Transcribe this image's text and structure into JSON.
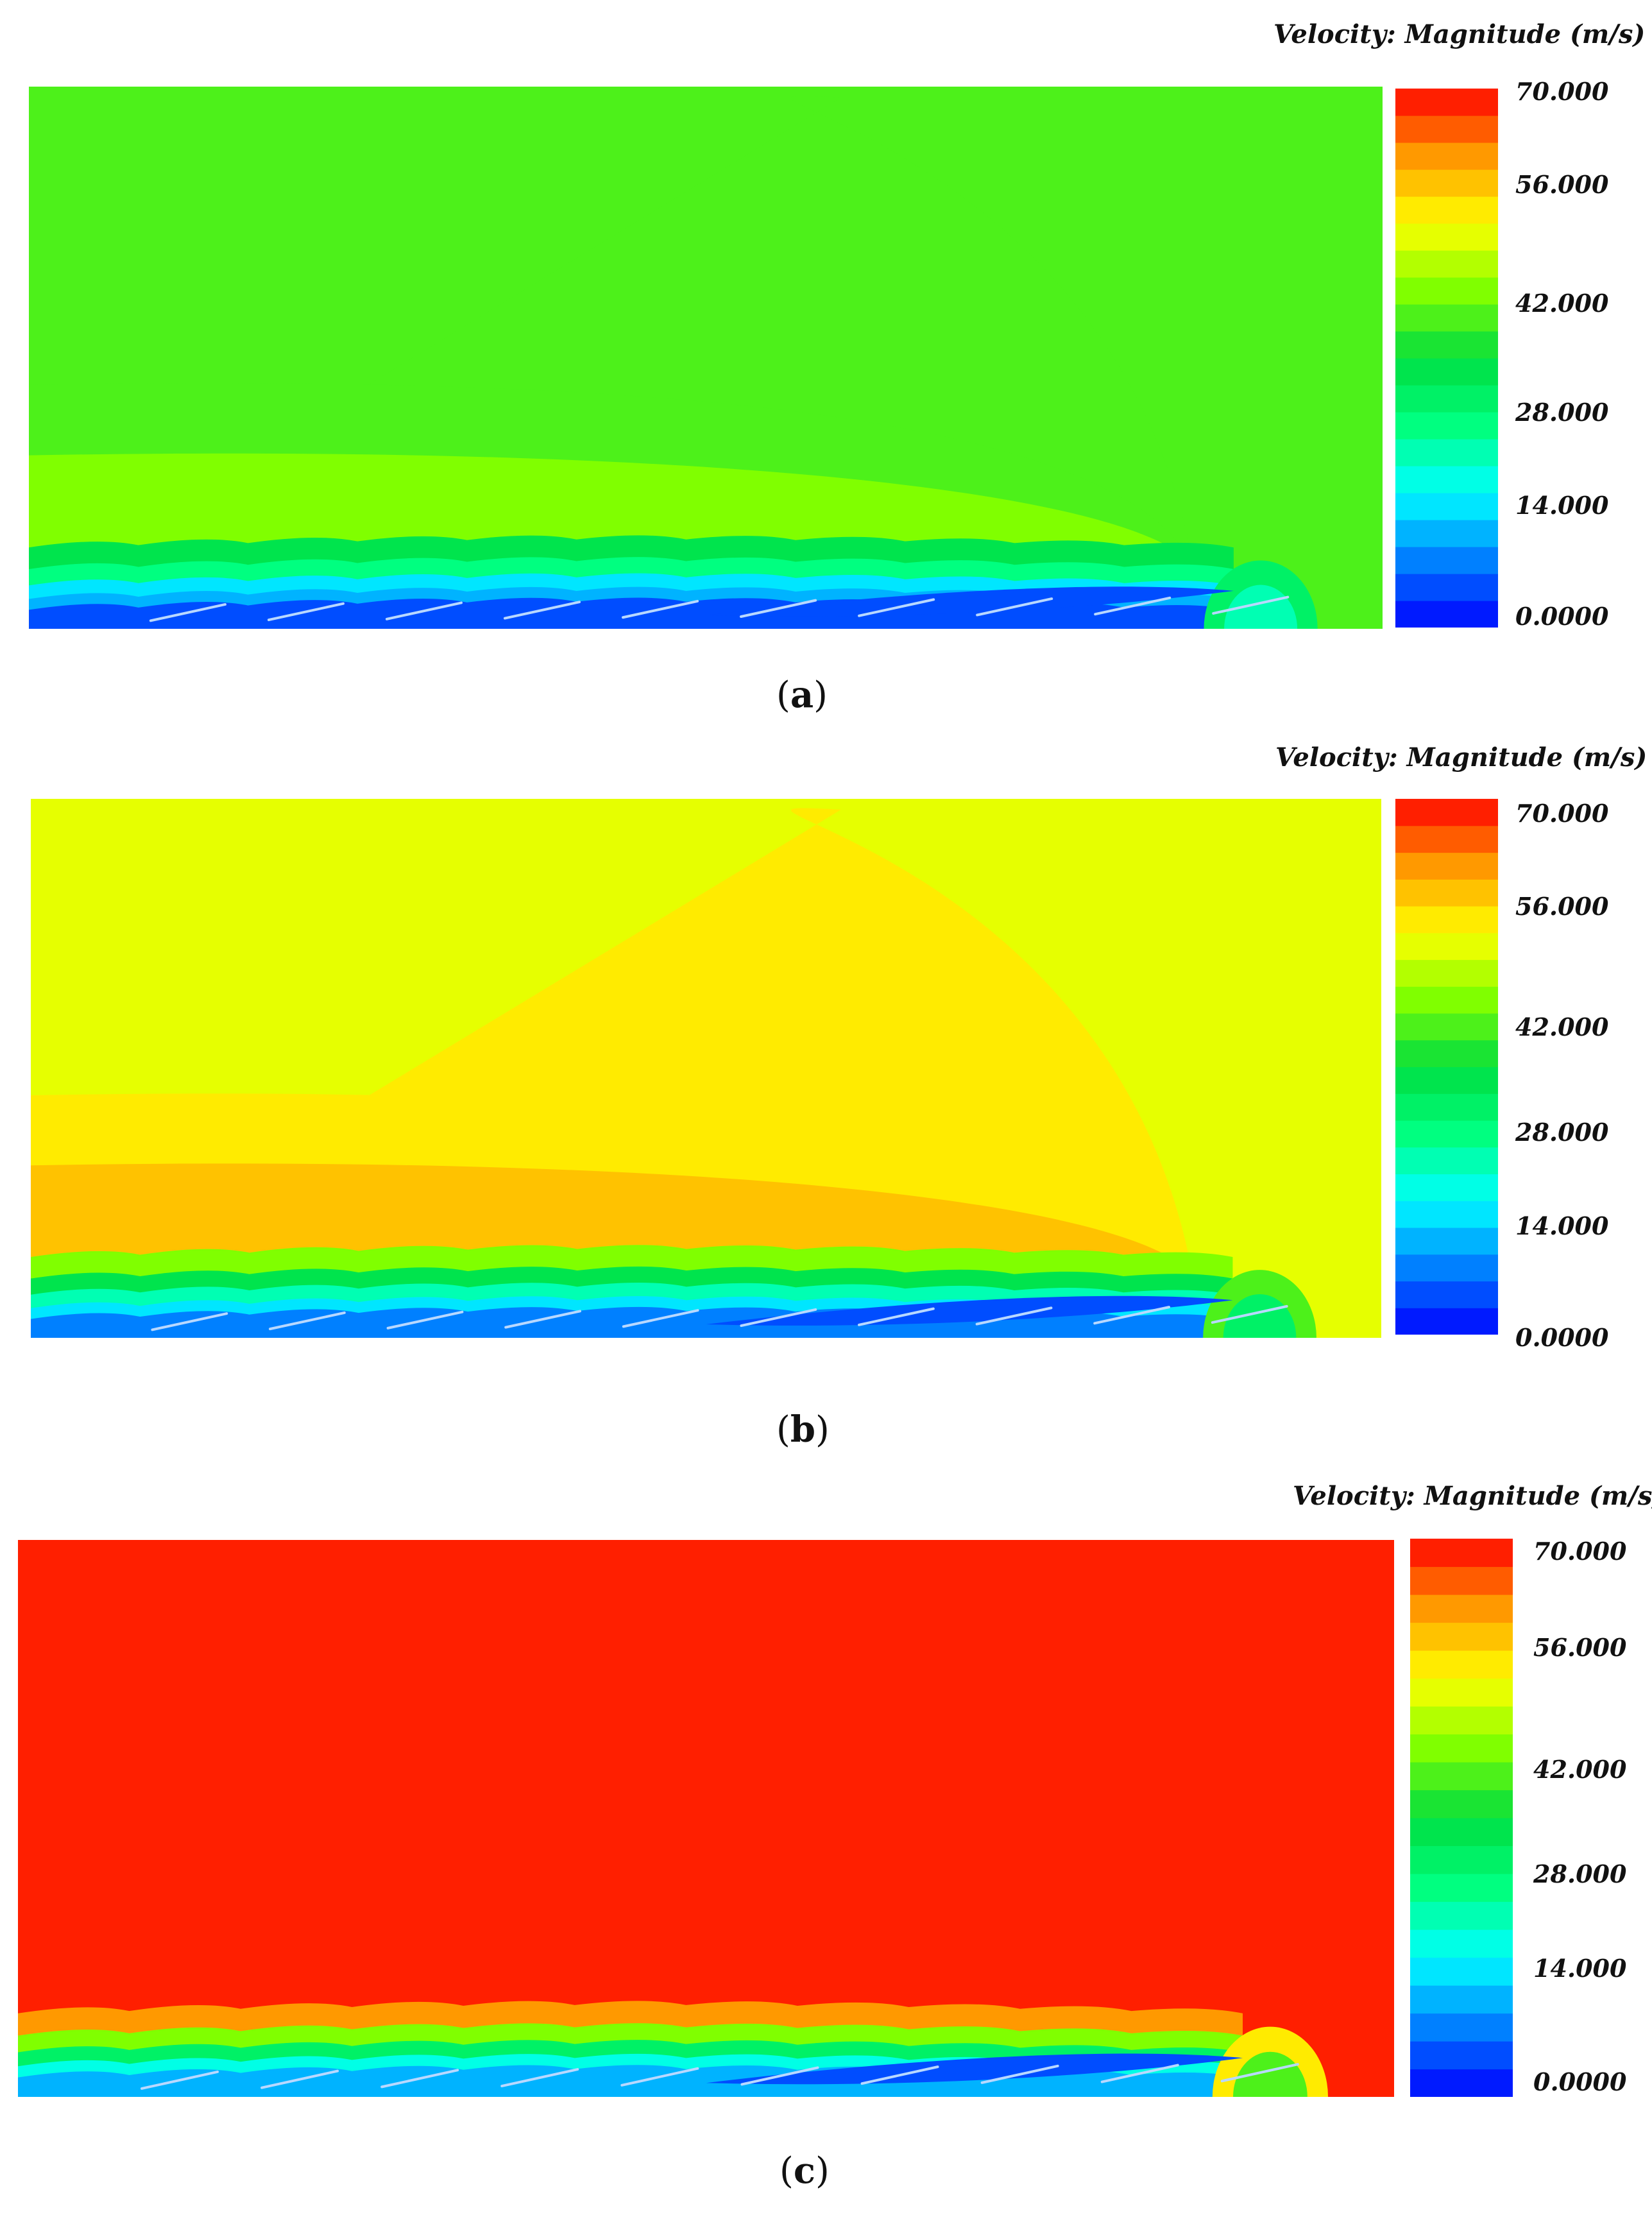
{
  "chart_data": [
    {
      "type": "heatmap",
      "panel_label": "a",
      "legend_title": "Velocity: Magnitude (m/s)",
      "colorbar_ticks": [
        "70.000",
        "56.000",
        "42.000",
        "28.000",
        "14.000",
        "0.0000"
      ],
      "colorbar_range": [
        0,
        70
      ],
      "colorbar_levels": 20,
      "freestream_velocity": 40
    },
    {
      "type": "heatmap",
      "panel_label": "b",
      "legend_title": "Velocity: Magnitude (m/s)",
      "colorbar_ticks": [
        "70.000",
        "56.000",
        "42.000",
        "28.000",
        "14.000",
        "0.0000"
      ],
      "colorbar_range": [
        0,
        70
      ],
      "colorbar_levels": 20,
      "freestream_velocity": 52
    },
    {
      "type": "heatmap",
      "panel_label": "c",
      "legend_title": "Velocity: Magnitude (m/s)",
      "colorbar_ticks": [
        "70.000",
        "56.000",
        "42.000",
        "28.000",
        "14.000",
        "0.0000"
      ],
      "colorbar_range": [
        0,
        70
      ],
      "colorbar_levels": 20,
      "freestream_velocity": 70
    }
  ],
  "colormap": [
    "#0000ff",
    "#0080ff",
    "#00ffff",
    "#00ff80",
    "#00dd40",
    "#80ff00",
    "#ffff00",
    "#ff9900",
    "#ff0000"
  ]
}
